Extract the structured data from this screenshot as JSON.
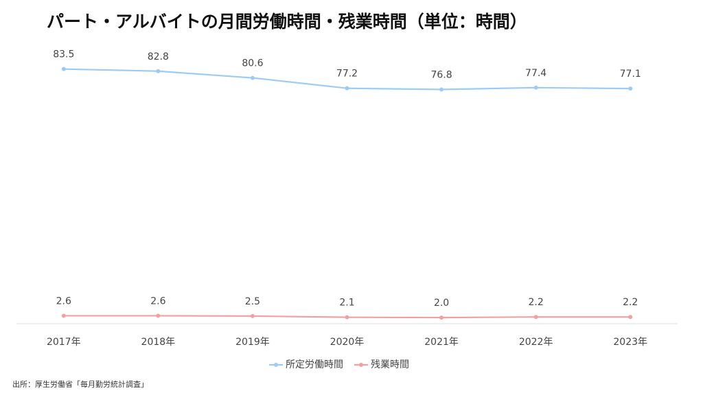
{
  "chart_data": {
    "type": "line",
    "title": "パート・アルバイトの月間労働時間・残業時間（単位：時間）",
    "categories": [
      "2017年",
      "2018年",
      "2019年",
      "2020年",
      "2021年",
      "2022年",
      "2023年"
    ],
    "series": [
      {
        "name": "所定労働時間",
        "color": "#9ecbf5",
        "values": [
          83.5,
          82.8,
          80.6,
          77.2,
          76.8,
          77.4,
          77.1
        ]
      },
      {
        "name": "残業時間",
        "color": "#f4a0a0",
        "values": [
          2.6,
          2.6,
          2.5,
          2.1,
          2.0,
          2.2,
          2.2
        ],
        "value_labels": [
          "2.6",
          "2.6",
          "2.5",
          "2.1",
          "2.0",
          "2.2",
          "2.2"
        ]
      }
    ],
    "ylim": [
      0,
      85
    ],
    "legend": "bottom",
    "source": "出所：厚生労働省「毎月勤労統計調査」"
  }
}
